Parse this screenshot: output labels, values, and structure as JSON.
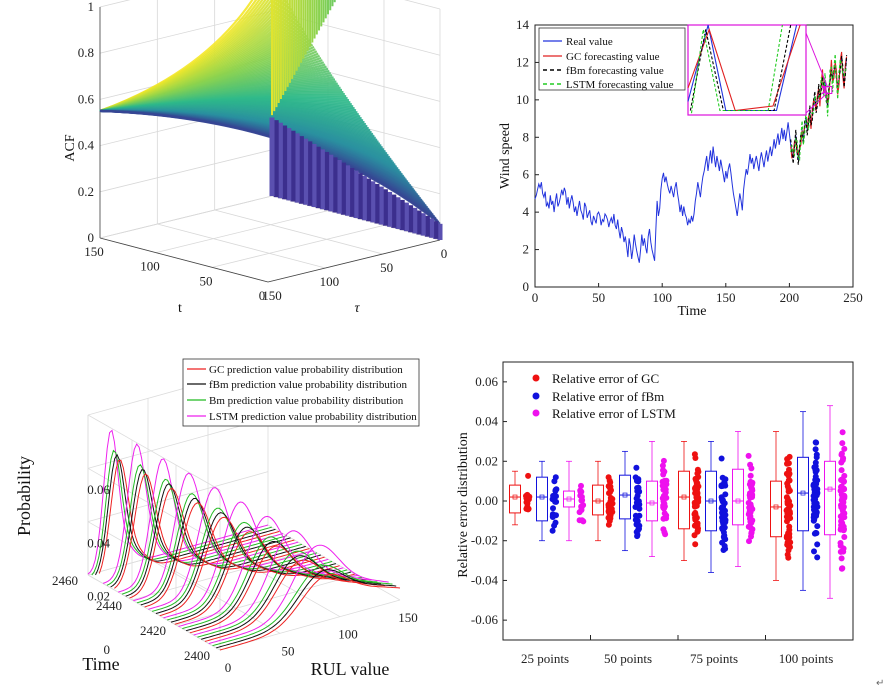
{
  "chart_data": [
    {
      "type": "surface3d",
      "zlabel": "ACF",
      "xlabel": "t",
      "ylabel": "τ",
      "z_ticks": [
        "0",
        "0.2",
        "0.4",
        "0.6",
        "0.8",
        "1"
      ],
      "t_ticks": [
        "150",
        "100",
        "50",
        "0"
      ],
      "tau_ticks": [
        "150",
        "100",
        "50",
        "0"
      ],
      "zlim": [
        0,
        1
      ],
      "surface_min_value": 0.55,
      "surface_max_value": 1,
      "surface_floor_value": 0.07,
      "colormap": [
        "#3b2a8f",
        "#2a8fa0",
        "#2fb98a",
        "#8ed34d",
        "#f5e829"
      ]
    },
    {
      "type": "line",
      "xlabel": "Time",
      "ylabel": "Wind speed",
      "xlim": [
        0,
        250
      ],
      "ylim": [
        0,
        14
      ],
      "x_ticks": [
        "0",
        "50",
        "100",
        "150",
        "200",
        "250"
      ],
      "y_ticks": [
        "0",
        "2",
        "4",
        "6",
        "8",
        "10",
        "12",
        "14"
      ],
      "series": [
        {
          "name": "Real value",
          "color": "#2233dd",
          "style": "solid",
          "x_start": 0,
          "values": [
            4.7,
            4.9,
            5.2,
            5.5,
            5.3,
            5.6,
            5.0,
            4.8,
            5.1,
            4.3,
            4.5,
            4.2,
            4.9,
            4.4,
            4.6,
            4.0,
            4.6,
            5.0,
            4.3,
            4.5,
            4.8,
            5.2,
            4.9,
            5.3,
            5.1,
            4.4,
            4.8,
            4.2,
            4.6,
            4.9,
            4.5,
            4.0,
            4.3,
            3.8,
            4.2,
            4.6,
            4.1,
            3.9,
            3.6,
            4.5,
            4.3,
            3.7,
            3.9,
            4.1,
            3.5,
            3.3,
            3.8,
            3.6,
            3.4,
            3.9,
            4.0,
            3.8,
            3.3,
            3.6,
            3.5,
            3.9,
            3.8,
            3.6,
            3.2,
            3.5,
            3.7,
            3.4,
            3.9,
            3.3,
            3.1,
            3.6,
            3.0,
            2.6,
            3.2,
            2.9,
            2.4,
            2.7,
            2.2,
            1.6,
            2.6,
            2.2,
            1.5,
            2.0,
            2.8,
            2.3,
            1.9,
            1.6,
            1.3,
            2.0,
            2.8,
            2.2,
            2.6,
            2.1,
            1.8,
            2.7,
            3.1,
            2.4,
            2.0,
            1.7,
            1.4,
            3.0,
            4.6,
            3.8,
            4.2,
            5.2,
            5.8,
            6.1,
            5.6,
            5.9,
            5.5,
            5.2,
            5.0,
            5.4,
            5.1,
            4.8,
            5.3,
            5.6,
            5.0,
            4.6,
            4.0,
            4.4,
            3.8,
            4.3,
            3.9,
            3.7,
            3.3,
            3.6,
            3.4,
            3.8,
            3.5,
            3.9,
            4.6,
            5.0,
            5.6,
            5.2,
            4.8,
            5.4,
            5.9,
            6.2,
            6.6,
            7.0,
            6.2,
            6.8,
            7.3,
            6.6,
            7.5,
            6.9,
            6.4,
            7.0,
            6.6,
            6.2,
            6.8,
            6.4,
            6.0,
            5.6,
            6.2,
            5.8,
            6.3,
            6.6,
            6.1,
            5.5,
            5.0,
            4.6,
            4.2,
            3.8,
            4.4,
            5.0,
            4.6,
            4.1,
            5.2,
            5.8,
            6.3,
            6.0,
            6.5,
            7.1,
            6.6,
            6.9,
            6.3,
            6.7,
            7.0,
            6.6,
            6.2,
            6.8,
            7.2,
            6.8,
            6.4,
            6.9,
            7.3,
            6.7,
            7.1,
            7.5,
            7.0,
            7.4,
            7.9,
            7.4,
            7.8,
            8.2,
            7.6,
            8.0,
            8.5,
            7.9,
            8.4,
            7.8,
            8.3,
            8.8,
            8.2,
            7.6,
            7.2,
            6.9,
            7.5,
            8.1,
            7.4,
            6.8,
            7.3,
            7.9,
            8.4,
            7.8,
            8.6,
            9.0,
            8.4,
            8.8,
            9.4,
            8.7,
            9.2,
            9.8,
            10.2,
            9.5,
            9.9,
            10.6,
            10.0,
            10.8,
            11.3,
            10.5,
            11.0,
            10.2,
            9.6,
            10.4,
            11.2,
            11.8,
            10.9,
            11.5,
            12.0,
            11.2,
            10.4,
            11.1,
            11.9,
            12.3,
            11.5,
            10.8,
            11.6,
            12.2
          ]
        },
        {
          "name": "GC forecasting value",
          "color": "#e02020",
          "style": "solid"
        },
        {
          "name": "fBm forecasting value",
          "color": "#000000",
          "style": "dashed"
        },
        {
          "name": "LSTM forecasting value",
          "color": "#22cc22",
          "style": "dashed"
        }
      ],
      "forecast_start_x": 201,
      "inset_color": "#dd11dd"
    },
    {
      "type": "ridgeline3d",
      "zlabel": "Probability",
      "xlabel": "RUL value",
      "ylabel": "Time",
      "z_ticks": [
        "0",
        "0.02",
        "0.04",
        "0.06"
      ],
      "rul_ticks": [
        "0",
        "50",
        "100",
        "150"
      ],
      "time_ticks": [
        "2400",
        "2420",
        "2440",
        "2460"
      ],
      "series": [
        {
          "name": "GC prediction value probability distribution",
          "color": "#ee2222"
        },
        {
          "name": "fBm prediction value probability distribution",
          "color": "#111111"
        },
        {
          "name": "Bm prediction value probability distribution",
          "color": "#22bb22"
        },
        {
          "name": "LSTM prediction value probability distribution",
          "color": "#ee22ee"
        }
      ]
    },
    {
      "type": "box_scatter",
      "ylabel": "Relative error distribution",
      "ylim": [
        -0.07,
        0.07
      ],
      "y_ticks": [
        "0.06",
        "0.04",
        "0.02",
        "0.00",
        "-0.02",
        "-0.04",
        "-0.06"
      ],
      "categories": [
        "25 points",
        "50 points",
        "75 points",
        "100 points"
      ],
      "series": [
        {
          "name": "Relative error of GC",
          "color": "#ee1111"
        },
        {
          "name": "Relative error of fBm",
          "color": "#1111dd"
        },
        {
          "name": "Relative error of LSTM",
          "color": "#ee11ee"
        }
      ],
      "boxes": [
        {
          "category": "25 points",
          "series": "Relative error of GC",
          "q1": -0.006,
          "median": 0.002,
          "q3": 0.008,
          "whisker_lo": -0.012,
          "whisker_hi": 0.015
        },
        {
          "category": "25 points",
          "series": "Relative error of fBm",
          "q1": -0.01,
          "median": 0.002,
          "q3": 0.012,
          "whisker_lo": -0.02,
          "whisker_hi": 0.02
        },
        {
          "category": "25 points",
          "series": "Relative error of LSTM",
          "q1": -0.003,
          "median": 0.001,
          "q3": 0.005,
          "whisker_lo": -0.02,
          "whisker_hi": 0.02
        },
        {
          "category": "50 points",
          "series": "Relative error of GC",
          "q1": -0.007,
          "median": 0.0,
          "q3": 0.008,
          "whisker_lo": -0.02,
          "whisker_hi": 0.02
        },
        {
          "category": "50 points",
          "series": "Relative error of fBm",
          "q1": -0.009,
          "median": 0.003,
          "q3": 0.013,
          "whisker_lo": -0.025,
          "whisker_hi": 0.025
        },
        {
          "category": "50 points",
          "series": "Relative error of LSTM",
          "q1": -0.01,
          "median": -0.001,
          "q3": 0.01,
          "whisker_lo": -0.028,
          "whisker_hi": 0.03
        },
        {
          "category": "75 points",
          "series": "Relative error of GC",
          "q1": -0.014,
          "median": 0.002,
          "q3": 0.015,
          "whisker_lo": -0.03,
          "whisker_hi": 0.03
        },
        {
          "category": "75 points",
          "series": "Relative error of fBm",
          "q1": -0.015,
          "median": 0.0,
          "q3": 0.015,
          "whisker_lo": -0.036,
          "whisker_hi": 0.03
        },
        {
          "category": "75 points",
          "series": "Relative error of LSTM",
          "q1": -0.012,
          "median": 0.0,
          "q3": 0.016,
          "whisker_lo": -0.033,
          "whisker_hi": 0.035
        },
        {
          "category": "100 points",
          "series": "Relative error of GC",
          "q1": -0.018,
          "median": -0.003,
          "q3": 0.01,
          "whisker_lo": -0.04,
          "whisker_hi": 0.035
        },
        {
          "category": "100 points",
          "series": "Relative error of fBm",
          "q1": -0.015,
          "median": 0.004,
          "q3": 0.022,
          "whisker_lo": -0.045,
          "whisker_hi": 0.045
        },
        {
          "category": "100 points",
          "series": "Relative error of LSTM",
          "q1": -0.017,
          "median": 0.006,
          "q3": 0.02,
          "whisker_lo": -0.049,
          "whisker_hi": 0.048
        }
      ]
    }
  ],
  "footer": {
    "return_mark": "↵"
  }
}
